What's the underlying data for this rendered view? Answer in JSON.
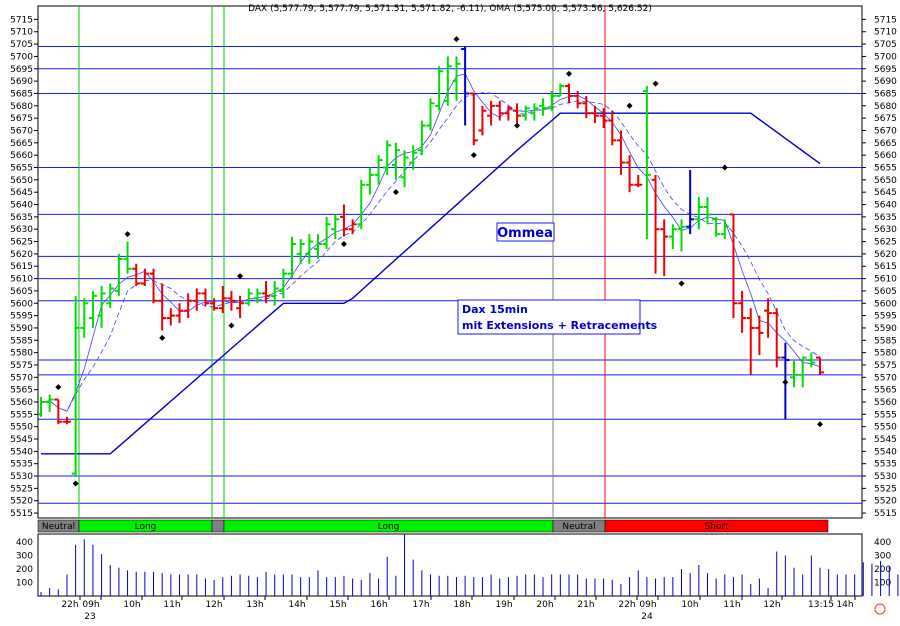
{
  "chart_data": {
    "type": "ohlc",
    "header": "DAX (5,577.79, 5,577.79, 5,571.51, 5,571.82, -6.11), OMA (5,575.00, 5,573.56, 5,626.52)",
    "annotations": [
      "Ommea",
      "Dax 15min",
      "mit Extensions + Retracements"
    ],
    "y_ticks": [
      5515,
      5520,
      5525,
      5530,
      5535,
      5540,
      5545,
      5550,
      5555,
      5560,
      5565,
      5570,
      5575,
      5580,
      5585,
      5590,
      5595,
      5600,
      5605,
      5610,
      5615,
      5620,
      5625,
      5630,
      5635,
      5640,
      5645,
      5650,
      5655,
      5660,
      5665,
      5670,
      5675,
      5680,
      5685,
      5690,
      5695,
      5700,
      5705,
      5710,
      5715
    ],
    "y_range": [
      5513,
      5718
    ],
    "hlines": [
      5704,
      5695,
      5685,
      5655,
      5636,
      5619,
      5610,
      5601,
      5577,
      5571,
      5553,
      5530,
      5519
    ],
    "time_labels": [
      "22h",
      "09h",
      "10h",
      "11h",
      "12h",
      "13h",
      "14h",
      "15h",
      "16h",
      "17h",
      "18h",
      "19h",
      "20h",
      "21h",
      "22h",
      "09h",
      "10h",
      "11h",
      "12h",
      "13:15",
      "14h"
    ],
    "day_labels": [
      "23",
      "24"
    ],
    "phases": [
      {
        "label": "Neutral",
        "color": "#808080"
      },
      {
        "label": "Long",
        "color": "#00ee00"
      },
      {
        "label": "",
        "color": "#808080"
      },
      {
        "label": "Long",
        "color": "#00ee00"
      },
      {
        "label": "Neutral",
        "color": "#808080"
      },
      {
        "label": "Short",
        "color": "#ff0000"
      }
    ],
    "volume_ticks": [
      100,
      200,
      300,
      400
    ],
    "volume_range": [
      0,
      460
    ],
    "volume": [
      30,
      60,
      50,
      160,
      380,
      420,
      380,
      310,
      230,
      210,
      190,
      180,
      180,
      180,
      170,
      160,
      160,
      160,
      160,
      130,
      120,
      140,
      150,
      160,
      150,
      140,
      180,
      160,
      160,
      160,
      140,
      140,
      190,
      140,
      140,
      150,
      130,
      120,
      170,
      130,
      290,
      150,
      460,
      270,
      190,
      160,
      150,
      150,
      140,
      150,
      140,
      140,
      160,
      130,
      140,
      150,
      160,
      160,
      140,
      160,
      160,
      160,
      160,
      130,
      130,
      130,
      120,
      90,
      140,
      190,
      140,
      130,
      140,
      140,
      200,
      170,
      230,
      170,
      130,
      160,
      140,
      160,
      90,
      130,
      60,
      330,
      300,
      210,
      160,
      300,
      210,
      200,
      160,
      160,
      160,
      250,
      240,
      260,
      220,
      160,
      280,
      300,
      120
    ],
    "bars": [
      {
        "o": 5555,
        "h": 5562,
        "l": 5554,
        "c": 5560,
        "dir": "up"
      },
      {
        "o": 5560,
        "h": 5563,
        "l": 5556,
        "c": 5561,
        "dir": "up"
      },
      {
        "o": 5561,
        "h": 5561,
        "l": 5551,
        "c": 5552,
        "dir": "down"
      },
      {
        "o": 5552,
        "h": 5554,
        "l": 5551,
        "c": 5552,
        "dir": "down"
      },
      {
        "o": 5531,
        "h": 5603,
        "l": 5530,
        "c": 5590,
        "dir": "up"
      },
      {
        "o": 5590,
        "h": 5602,
        "l": 5586,
        "c": 5600,
        "dir": "up"
      },
      {
        "o": 5594,
        "h": 5605,
        "l": 5590,
        "c": 5603,
        "dir": "up"
      },
      {
        "o": 5595,
        "h": 5607,
        "l": 5590,
        "c": 5604,
        "dir": "up"
      },
      {
        "o": 5600,
        "h": 5608,
        "l": 5598,
        "c": 5606,
        "dir": "up"
      },
      {
        "o": 5605,
        "h": 5620,
        "l": 5603,
        "c": 5618,
        "dir": "up"
      },
      {
        "o": 5618,
        "h": 5625,
        "l": 5612,
        "c": 5614,
        "dir": "up"
      },
      {
        "o": 5614,
        "h": 5616,
        "l": 5607,
        "c": 5608,
        "dir": "down"
      },
      {
        "o": 5608,
        "h": 5614,
        "l": 5607,
        "c": 5612,
        "dir": "down"
      },
      {
        "o": 5612,
        "h": 5614,
        "l": 5600,
        "c": 5601,
        "dir": "down"
      },
      {
        "o": 5601,
        "h": 5608,
        "l": 5589,
        "c": 5594,
        "dir": "down"
      },
      {
        "o": 5594,
        "h": 5598,
        "l": 5591,
        "c": 5595,
        "dir": "down"
      },
      {
        "o": 5595,
        "h": 5600,
        "l": 5592,
        "c": 5597,
        "dir": "down"
      },
      {
        "o": 5597,
        "h": 5604,
        "l": 5594,
        "c": 5601,
        "dir": "down"
      },
      {
        "o": 5601,
        "h": 5606,
        "l": 5597,
        "c": 5604,
        "dir": "down"
      },
      {
        "o": 5604,
        "h": 5606,
        "l": 5599,
        "c": 5600,
        "dir": "down"
      },
      {
        "o": 5600,
        "h": 5602,
        "l": 5597,
        "c": 5598,
        "dir": "down"
      },
      {
        "o": 5598,
        "h": 5607,
        "l": 5596,
        "c": 5602,
        "dir": "down"
      },
      {
        "o": 5602,
        "h": 5605,
        "l": 5597,
        "c": 5601,
        "dir": "down"
      },
      {
        "o": 5598,
        "h": 5603,
        "l": 5594,
        "c": 5600,
        "dir": "down"
      },
      {
        "o": 5600,
        "h": 5606,
        "l": 5599,
        "c": 5604,
        "dir": "up"
      },
      {
        "o": 5602,
        "h": 5606,
        "l": 5600,
        "c": 5604,
        "dir": "up"
      },
      {
        "o": 5604,
        "h": 5609,
        "l": 5600,
        "c": 5603,
        "dir": "down"
      },
      {
        "o": 5603,
        "h": 5609,
        "l": 5599,
        "c": 5606,
        "dir": "up"
      },
      {
        "o": 5605,
        "h": 5614,
        "l": 5602,
        "c": 5612,
        "dir": "up"
      },
      {
        "o": 5612,
        "h": 5627,
        "l": 5610,
        "c": 5624,
        "dir": "up"
      },
      {
        "o": 5620,
        "h": 5626,
        "l": 5616,
        "c": 5624,
        "dir": "up"
      },
      {
        "o": 5620,
        "h": 5628,
        "l": 5616,
        "c": 5625,
        "dir": "up"
      },
      {
        "o": 5622,
        "h": 5628,
        "l": 5618,
        "c": 5624,
        "dir": "up"
      },
      {
        "o": 5624,
        "h": 5635,
        "l": 5622,
        "c": 5632,
        "dir": "up"
      },
      {
        "o": 5630,
        "h": 5636,
        "l": 5626,
        "c": 5634,
        "dir": "up"
      },
      {
        "o": 5635,
        "h": 5640,
        "l": 5627,
        "c": 5630,
        "dir": "down"
      },
      {
        "o": 5630,
        "h": 5634,
        "l": 5628,
        "c": 5632,
        "dir": "down"
      },
      {
        "o": 5632,
        "h": 5650,
        "l": 5630,
        "c": 5648,
        "dir": "up"
      },
      {
        "o": 5648,
        "h": 5655,
        "l": 5644,
        "c": 5652,
        "dir": "up"
      },
      {
        "o": 5652,
        "h": 5660,
        "l": 5648,
        "c": 5658,
        "dir": "up"
      },
      {
        "o": 5655,
        "h": 5666,
        "l": 5652,
        "c": 5664,
        "dir": "up"
      },
      {
        "o": 5656,
        "h": 5665,
        "l": 5650,
        "c": 5662,
        "dir": "up"
      },
      {
        "o": 5651,
        "h": 5662,
        "l": 5647,
        "c": 5659,
        "dir": "up"
      },
      {
        "o": 5657,
        "h": 5664,
        "l": 5654,
        "c": 5661,
        "dir": "up"
      },
      {
        "o": 5662,
        "h": 5674,
        "l": 5660,
        "c": 5672,
        "dir": "up"
      },
      {
        "o": 5672,
        "h": 5683,
        "l": 5670,
        "c": 5681,
        "dir": "up"
      },
      {
        "o": 5680,
        "h": 5696,
        "l": 5678,
        "c": 5694,
        "dir": "up"
      },
      {
        "o": 5682,
        "h": 5700,
        "l": 5680,
        "c": 5696,
        "dir": "up"
      },
      {
        "o": 5690,
        "h": 5700,
        "l": 5682,
        "c": 5697,
        "dir": "up"
      },
      {
        "o": 5703,
        "h": 5704,
        "l": 5672,
        "c": 5685,
        "dir": "blue"
      },
      {
        "o": 5685,
        "h": 5685,
        "l": 5664,
        "c": 5666,
        "dir": "down"
      },
      {
        "o": 5670,
        "h": 5680,
        "l": 5668,
        "c": 5678,
        "dir": "down"
      },
      {
        "o": 5676,
        "h": 5682,
        "l": 5672,
        "c": 5680,
        "dir": "down"
      },
      {
        "o": 5680,
        "h": 5682,
        "l": 5674,
        "c": 5677,
        "dir": "down"
      },
      {
        "o": 5677,
        "h": 5680,
        "l": 5674,
        "c": 5679,
        "dir": "down"
      },
      {
        "o": 5678,
        "h": 5681,
        "l": 5673,
        "c": 5676,
        "dir": "down"
      },
      {
        "o": 5676,
        "h": 5680,
        "l": 5674,
        "c": 5679,
        "dir": "up"
      },
      {
        "o": 5677,
        "h": 5681,
        "l": 5674,
        "c": 5679,
        "dir": "up"
      },
      {
        "o": 5680,
        "h": 5683,
        "l": 5676,
        "c": 5679,
        "dir": "up"
      },
      {
        "o": 5679,
        "h": 5686,
        "l": 5678,
        "c": 5684,
        "dir": "up"
      },
      {
        "o": 5684,
        "h": 5689,
        "l": 5684,
        "c": 5688,
        "dir": "up"
      },
      {
        "o": 5688,
        "h": 5689,
        "l": 5681,
        "c": 5684,
        "dir": "down"
      },
      {
        "o": 5684,
        "h": 5686,
        "l": 5679,
        "c": 5681,
        "dir": "down"
      },
      {
        "o": 5681,
        "h": 5684,
        "l": 5675,
        "c": 5677,
        "dir": "down"
      },
      {
        "o": 5677,
        "h": 5680,
        "l": 5673,
        "c": 5676,
        "dir": "down"
      },
      {
        "o": 5676,
        "h": 5679,
        "l": 5671,
        "c": 5674,
        "dir": "down"
      },
      {
        "o": 5674,
        "h": 5678,
        "l": 5664,
        "c": 5666,
        "dir": "down"
      },
      {
        "o": 5666,
        "h": 5670,
        "l": 5652,
        "c": 5657,
        "dir": "down"
      },
      {
        "o": 5657,
        "h": 5660,
        "l": 5645,
        "c": 5648,
        "dir": "down"
      },
      {
        "o": 5648,
        "h": 5652,
        "l": 5647,
        "c": 5648,
        "dir": "down"
      },
      {
        "o": 5686,
        "h": 5688,
        "l": 5626,
        "c": 5652,
        "dir": "up"
      },
      {
        "o": 5650,
        "h": 5652,
        "l": 5612,
        "c": 5630,
        "dir": "down"
      },
      {
        "o": 5630,
        "h": 5634,
        "l": 5611,
        "c": 5627,
        "dir": "down"
      },
      {
        "o": 5627,
        "h": 5632,
        "l": 5622,
        "c": 5630,
        "dir": "up"
      },
      {
        "o": 5630,
        "h": 5634,
        "l": 5621,
        "c": 5631,
        "dir": "up"
      },
      {
        "o": 5631,
        "h": 5654,
        "l": 5628,
        "c": 5634,
        "dir": "blue"
      },
      {
        "o": 5634,
        "h": 5643,
        "l": 5630,
        "c": 5639,
        "dir": "up"
      },
      {
        "o": 5639,
        "h": 5643,
        "l": 5632,
        "c": 5636,
        "dir": "up"
      },
      {
        "o": 5634,
        "h": 5635,
        "l": 5627,
        "c": 5628,
        "dir": "up"
      },
      {
        "o": 5628,
        "h": 5634,
        "l": 5626,
        "c": 5631,
        "dir": "up"
      },
      {
        "o": 5636,
        "h": 5636,
        "l": 5594,
        "c": 5600,
        "dir": "down"
      },
      {
        "o": 5600,
        "h": 5605,
        "l": 5588,
        "c": 5594,
        "dir": "down"
      },
      {
        "o": 5594,
        "h": 5598,
        "l": 5571,
        "c": 5590,
        "dir": "down"
      },
      {
        "o": 5590,
        "h": 5595,
        "l": 5579,
        "c": 5588,
        "dir": "down"
      },
      {
        "o": 5597,
        "h": 5602,
        "l": 5586,
        "c": 5596,
        "dir": "down"
      },
      {
        "o": 5596,
        "h": 5598,
        "l": 5574,
        "c": 5578,
        "dir": "down"
      },
      {
        "o": 5578,
        "h": 5584,
        "l": 5553,
        "c": 5577,
        "dir": "blue"
      },
      {
        "o": 5570,
        "h": 5577,
        "l": 5566,
        "c": 5571,
        "dir": "up"
      },
      {
        "o": 5571,
        "h": 5578,
        "l": 5566,
        "c": 5578,
        "dir": "up"
      },
      {
        "o": 5577,
        "h": 5580,
        "l": 5574,
        "c": 5576,
        "dir": "up"
      },
      {
        "o": 5578,
        "h": 5578,
        "l": 5571,
        "c": 5572,
        "dir": "down"
      }
    ],
    "diamonds": [
      {
        "i": 2,
        "v": 5566
      },
      {
        "i": 4,
        "v": 5527
      },
      {
        "i": 10,
        "v": 5628
      },
      {
        "i": 14,
        "v": 5586
      },
      {
        "i": 22,
        "v": 5591
      },
      {
        "i": 23,
        "v": 5611
      },
      {
        "i": 35,
        "v": 5624
      },
      {
        "i": 41,
        "v": 5645
      },
      {
        "i": 48,
        "v": 5707
      },
      {
        "i": 50,
        "v": 5660
      },
      {
        "i": 55,
        "v": 5672
      },
      {
        "i": 61,
        "v": 5693
      },
      {
        "i": 68,
        "v": 5680
      },
      {
        "i": 71,
        "v": 5689
      },
      {
        "i": 74,
        "v": 5608
      },
      {
        "i": 79,
        "v": 5655
      },
      {
        "i": 86,
        "v": 5568
      },
      {
        "i": 90,
        "v": 5551
      }
    ]
  }
}
